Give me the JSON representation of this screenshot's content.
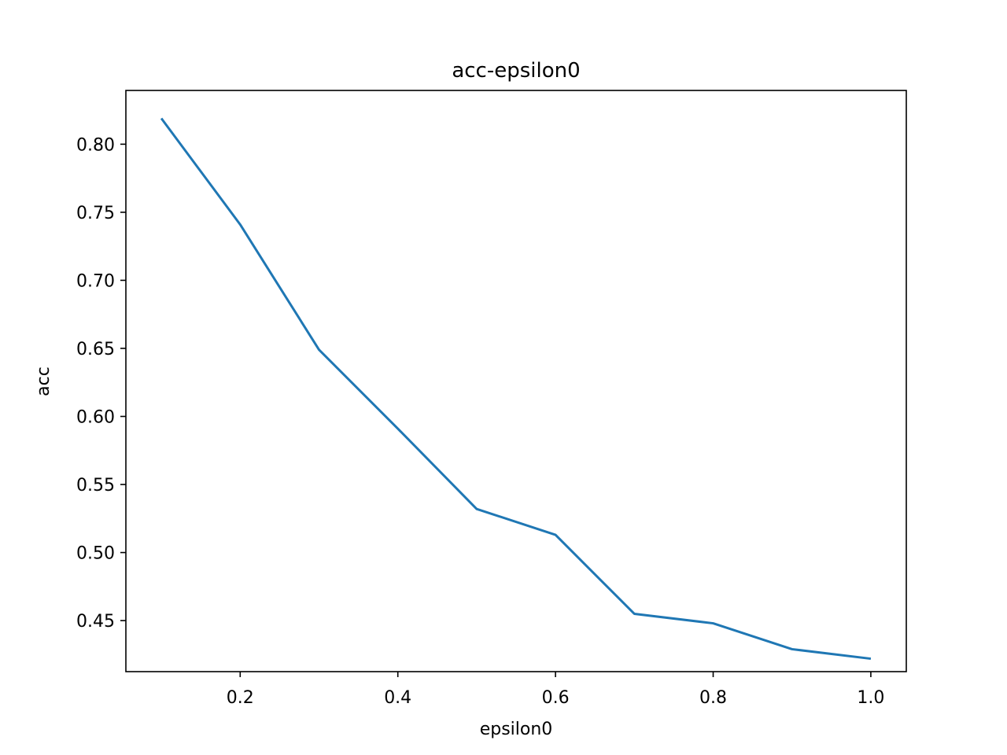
{
  "chart_data": {
    "type": "line",
    "title": "acc-epsilon0",
    "xlabel": "epsilon0",
    "ylabel": "acc",
    "xlim": [
      0.055,
      1.045
    ],
    "ylim": [
      0.4125,
      0.8395
    ],
    "xticks": [
      0.2,
      0.4,
      0.6,
      0.8,
      1.0
    ],
    "xtick_labels": [
      "0.2",
      "0.4",
      "0.6",
      "0.8",
      "1.0"
    ],
    "yticks": [
      0.45,
      0.5,
      0.55,
      0.6,
      0.65,
      0.7,
      0.75,
      0.8
    ],
    "ytick_labels": [
      "0.45",
      "0.50",
      "0.55",
      "0.60",
      "0.65",
      "0.70",
      "0.75",
      "0.80"
    ],
    "grid": false,
    "series": [
      {
        "x": [
          0.1,
          0.2,
          0.3,
          0.4,
          0.5,
          0.6,
          0.7,
          0.8,
          0.9,
          1.0
        ],
        "values": [
          0.819,
          0.741,
          0.649,
          0.591,
          0.532,
          0.513,
          0.455,
          0.448,
          0.429,
          0.422
        ],
        "color": "#1f77b4"
      }
    ]
  }
}
